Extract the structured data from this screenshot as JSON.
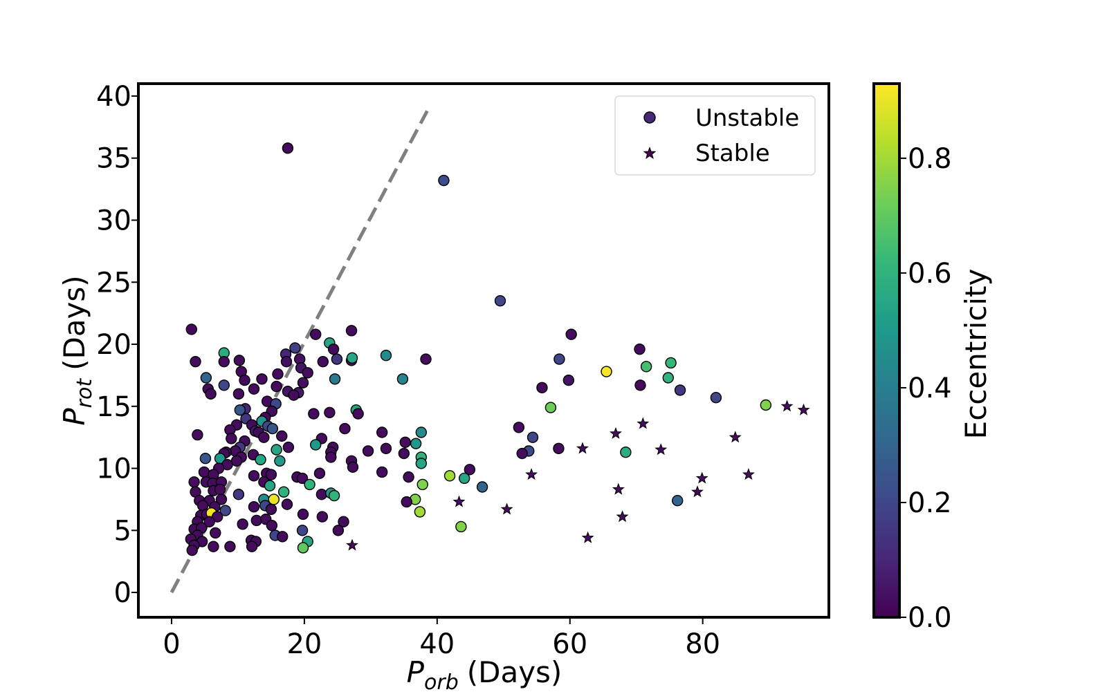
{
  "chart_data": {
    "type": "scatter",
    "xlabel_main": "P",
    "xlabel_sub": "orb",
    "xlabel_unit": "(Days)",
    "ylabel_main": "P",
    "ylabel_sub": "rot",
    "ylabel_unit": "(Days)",
    "xlim": [
      -5,
      99
    ],
    "ylim": [
      -2,
      41
    ],
    "xticks": [
      0,
      20,
      40,
      60,
      80
    ],
    "yticks": [
      0,
      5,
      10,
      15,
      20,
      25,
      30,
      35,
      40
    ],
    "grid": false,
    "legend_position": "top-right",
    "reference_line": {
      "style": "dashed",
      "color": "#808080",
      "points": [
        [
          0,
          0
        ],
        [
          38.5,
          38.8
        ]
      ]
    },
    "colorbar": {
      "label": "Eccentricity",
      "range": [
        0,
        0.93
      ],
      "ticks": [
        "0.0",
        "0.2",
        "0.4",
        "0.6",
        "0.8"
      ],
      "tick_values": [
        0.0,
        0.2,
        0.4,
        0.6,
        0.8
      ],
      "colormap": "viridis",
      "colormap_stops": [
        "#440154",
        "#482878",
        "#3e4989",
        "#31688e",
        "#26828e",
        "#1f9e89",
        "#35b779",
        "#6ece58",
        "#b5de2b",
        "#fde725"
      ]
    },
    "series": [
      {
        "name": "Unstable",
        "marker": "circle",
        "points": [
          [
            17.5,
            35.8,
            0.02
          ],
          [
            41,
            33.2,
            0.22
          ],
          [
            49.5,
            23.5,
            0.2
          ],
          [
            60.2,
            20.8,
            0.03
          ],
          [
            70.5,
            19.6,
            0.03
          ],
          [
            3,
            21.2,
            0.02
          ],
          [
            27.1,
            21.1,
            0.03
          ],
          [
            21.7,
            20.8,
            0.03
          ],
          [
            23.8,
            20.1,
            0.55
          ],
          [
            18.6,
            19.7,
            0.18
          ],
          [
            24.4,
            19.6,
            0.03
          ],
          [
            7.9,
            19.3,
            0.58
          ],
          [
            17.2,
            19.2,
            0.1
          ],
          [
            19.3,
            18.8,
            0.04
          ],
          [
            24.9,
            18.8,
            0.15
          ],
          [
            10.2,
            18.7,
            0.03
          ],
          [
            3.6,
            18.6,
            0.03
          ],
          [
            7.9,
            18.6,
            0.03
          ],
          [
            17.3,
            18.6,
            0.04
          ],
          [
            22.8,
            18.6,
            0.03
          ],
          [
            27.1,
            18.7,
            0.05
          ],
          [
            27.2,
            18.9,
            0.55
          ],
          [
            32.3,
            19.1,
            0.45
          ],
          [
            38.3,
            18.8,
            0.03
          ],
          [
            58.4,
            18.8,
            0.2
          ],
          [
            71.5,
            18.2,
            0.65
          ],
          [
            75.2,
            18.5,
            0.62
          ],
          [
            65.5,
            17.8,
            0.92
          ],
          [
            10.5,
            17.8,
            0.03
          ],
          [
            19.5,
            18.1,
            0.05
          ],
          [
            16,
            17.6,
            0.03
          ],
          [
            20.5,
            17.7,
            0.03
          ],
          [
            13.6,
            17.2,
            0.03
          ],
          [
            5.2,
            17.3,
            0.3
          ],
          [
            11,
            17.1,
            0.03
          ],
          [
            19.8,
            16.9,
            0.04
          ],
          [
            15.8,
            16.6,
            0.03
          ],
          [
            7.9,
            16.7,
            0.2
          ],
          [
            12.4,
            16.4,
            0.03
          ],
          [
            5.5,
            16.4,
            0.03
          ],
          [
            5.9,
            16,
            0.03
          ],
          [
            17.5,
            16.2,
            0.05
          ],
          [
            19.1,
            16.1,
            0.06
          ],
          [
            24.6,
            17.2,
            0.38
          ],
          [
            34.8,
            17.2,
            0.42
          ],
          [
            59.8,
            17.1,
            0.05
          ],
          [
            70.6,
            16.7,
            0.03
          ],
          [
            74.8,
            17.3,
            0.6
          ],
          [
            76.6,
            16.3,
            0.15
          ],
          [
            55.8,
            16.5,
            0.03
          ],
          [
            82,
            15.7,
            0.2
          ],
          [
            10.1,
            16,
            0.03
          ],
          [
            18.4,
            15.9,
            0.03
          ],
          [
            14.4,
            15.4,
            0.03
          ],
          [
            15.7,
            15.2,
            0.2
          ],
          [
            57.1,
            14.9,
            0.72
          ],
          [
            89.5,
            15.1,
            0.75
          ],
          [
            11.1,
            14.8,
            0.1
          ],
          [
            10.3,
            14.7,
            0.25
          ],
          [
            21.4,
            14.4,
            0.03
          ],
          [
            27.8,
            14.7,
            0.55
          ],
          [
            28.1,
            14.4,
            0.03
          ],
          [
            15.1,
            14.6,
            0.03
          ],
          [
            14.1,
            14.1,
            0.03
          ],
          [
            23.8,
            14.5,
            0.03
          ],
          [
            11.2,
            14,
            0.15
          ],
          [
            12.1,
            13.5,
            0.03
          ],
          [
            13.6,
            13.8,
            0.48
          ],
          [
            14.5,
            13.4,
            0.2
          ],
          [
            9.8,
            13.5,
            0.03
          ],
          [
            8.8,
            13.1,
            0.03
          ],
          [
            12.6,
            13,
            0.06
          ],
          [
            13.1,
            12.9,
            0.03
          ],
          [
            15.2,
            13.2,
            0.25
          ],
          [
            26.1,
            13.2,
            0.03
          ],
          [
            31.7,
            12.9,
            0.03
          ],
          [
            52.3,
            13.3,
            0.03
          ],
          [
            3.9,
            12.7,
            0.03
          ],
          [
            13.9,
            12.5,
            0.03
          ],
          [
            16.6,
            12.6,
            0.03
          ],
          [
            9,
            12.4,
            0.03
          ],
          [
            22.6,
            12.4,
            0.03
          ],
          [
            37.6,
            12.9,
            0.45
          ],
          [
            54.4,
            12.5,
            0.2
          ],
          [
            11,
            12.2,
            0.03
          ],
          [
            35.2,
            12.1,
            0.03
          ],
          [
            36.8,
            12,
            0.5
          ],
          [
            17.6,
            11.7,
            0.03
          ],
          [
            21.7,
            11.9,
            0.5
          ],
          [
            24.3,
            11.7,
            0.03
          ],
          [
            32.3,
            11.6,
            0.03
          ],
          [
            10.3,
            11.7,
            0.15
          ],
          [
            15.8,
            11.5,
            0.55
          ],
          [
            9.6,
            11.4,
            0.03
          ],
          [
            8.2,
            11.3,
            0.03
          ],
          [
            29.6,
            11.4,
            0.03
          ],
          [
            35,
            11.2,
            0.03
          ],
          [
            58.3,
            11.6,
            0.03
          ],
          [
            68.4,
            11.3,
            0.58
          ],
          [
            53.8,
            11.4,
            0.2
          ],
          [
            52.8,
            11.2,
            0.03
          ],
          [
            7.9,
            11.2,
            0.03
          ],
          [
            24,
            11.3,
            0.03
          ],
          [
            12.3,
            11.1,
            0.03
          ],
          [
            16.3,
            10.6,
            0.5
          ],
          [
            24,
            10.9,
            0.03
          ],
          [
            37.6,
            10.9,
            0.6
          ],
          [
            37.6,
            10.4,
            0.55
          ],
          [
            5.1,
            10.8,
            0.25
          ],
          [
            10.5,
            10.9,
            0.03
          ],
          [
            13.4,
            10.7,
            0.55
          ],
          [
            7.3,
            10.8,
            0.5
          ],
          [
            9.8,
            10.6,
            0.03
          ],
          [
            27.1,
            10.6,
            0.03
          ],
          [
            27.3,
            10.1,
            0.03
          ],
          [
            8.4,
            10.3,
            0.03
          ],
          [
            7.1,
            10,
            0.03
          ],
          [
            44.9,
            9.9,
            0.03
          ],
          [
            41.9,
            9.4,
            0.8
          ],
          [
            44.1,
            9.2,
            0.55
          ],
          [
            31.7,
            9.7,
            0.03
          ],
          [
            22.3,
            9.6,
            0.03
          ],
          [
            14.3,
            9.6,
            0.03
          ],
          [
            15,
            9.5,
            0.03
          ],
          [
            18.9,
            9.3,
            0.03
          ],
          [
            19.7,
            9.2,
            0.03
          ],
          [
            35.7,
            9.3,
            0.03
          ],
          [
            12.4,
            9.4,
            0.03
          ],
          [
            4.9,
            9.7,
            0.03
          ],
          [
            6.3,
            9.5,
            0.03
          ],
          [
            3.4,
            8.9,
            0.03
          ],
          [
            5.2,
            8.9,
            0.03
          ],
          [
            6.2,
            8.8,
            0.03
          ],
          [
            7.5,
            8.9,
            0.03
          ],
          [
            13.9,
            8.9,
            0.03
          ],
          [
            14.8,
            8.6,
            0.55
          ],
          [
            20.8,
            8.7,
            0.6
          ],
          [
            37.8,
            8.7,
            0.75
          ],
          [
            46.8,
            8.5,
            0.3
          ],
          [
            3.6,
            8.1,
            0.03
          ],
          [
            6.3,
            8.2,
            0.03
          ],
          [
            7.3,
            8.3,
            0.03
          ],
          [
            10.1,
            7.9,
            0.15
          ],
          [
            16.9,
            8.1,
            0.6
          ],
          [
            22.6,
            7.9,
            0.03
          ],
          [
            24,
            8,
            0.5
          ],
          [
            24.5,
            7.8,
            0.6
          ],
          [
            4.2,
            7.4,
            0.03
          ],
          [
            5.7,
            7.4,
            0.03
          ],
          [
            7.5,
            7.5,
            0.03
          ],
          [
            13.9,
            7.5,
            0.45
          ],
          [
            15.4,
            7.5,
            0.9
          ],
          [
            17.4,
            7.1,
            0.03
          ],
          [
            36.7,
            7.5,
            0.75
          ],
          [
            35.4,
            7.3,
            0.03
          ],
          [
            76.2,
            7.4,
            0.3
          ],
          [
            4.7,
            7,
            0.03
          ],
          [
            6.5,
            6.9,
            0.03
          ],
          [
            8.1,
            6.6,
            0.2
          ],
          [
            14.1,
            7,
            0.2
          ],
          [
            12.4,
            6.9,
            0.03
          ],
          [
            15,
            6.7,
            0.03
          ],
          [
            37.4,
            6.5,
            0.8
          ],
          [
            19.8,
            6.3,
            0.03
          ],
          [
            22.7,
            6.1,
            0.03
          ],
          [
            4.4,
            6.2,
            0.03
          ],
          [
            5.3,
            6.3,
            0.03
          ],
          [
            6,
            6.4,
            0.92
          ],
          [
            6.9,
            6.1,
            0.03
          ],
          [
            3.9,
            5.7,
            0.03
          ],
          [
            5.7,
            5.7,
            0.03
          ],
          [
            12.8,
            5.8,
            0.03
          ],
          [
            14.2,
            5.9,
            0.03
          ],
          [
            25.9,
            5.7,
            0.03
          ],
          [
            43.6,
            5.3,
            0.75
          ],
          [
            10.7,
            5.5,
            0.03
          ],
          [
            15.1,
            5.4,
            0.03
          ],
          [
            3.4,
            5.1,
            0.03
          ],
          [
            4.5,
            5.2,
            0.03
          ],
          [
            6.6,
            4.8,
            0.03
          ],
          [
            19.7,
            5,
            0.2
          ],
          [
            25.1,
            5,
            0.03
          ],
          [
            3.9,
            4.6,
            0.03
          ],
          [
            15.6,
            4.6,
            0.2
          ],
          [
            16.7,
            4.5,
            0.03
          ],
          [
            2.9,
            4.3,
            0.03
          ],
          [
            4.6,
            4.1,
            0.03
          ],
          [
            12,
            4.2,
            0.03
          ],
          [
            12.7,
            4.1,
            0.03
          ],
          [
            20.5,
            4.1,
            0.55
          ],
          [
            3.4,
            3.8,
            0.03
          ],
          [
            6.3,
            3.7,
            0.03
          ],
          [
            8.8,
            3.7,
            0.03
          ],
          [
            12.1,
            3.7,
            0.03
          ],
          [
            19.8,
            3.6,
            0.7
          ],
          [
            3.1,
            3.4,
            0.03
          ]
        ]
      },
      {
        "name": "Stable",
        "marker": "star",
        "points": [
          [
            92.7,
            15,
            0.03
          ],
          [
            95.2,
            14.7,
            0.03
          ],
          [
            71,
            13.6,
            0.03
          ],
          [
            66.9,
            12.8,
            0.03
          ],
          [
            84.9,
            12.5,
            0.03
          ],
          [
            61.9,
            11.6,
            0.03
          ],
          [
            73.7,
            11.5,
            0.03
          ],
          [
            54.2,
            9.5,
            0.03
          ],
          [
            86.9,
            9.5,
            0.03
          ],
          [
            79.9,
            9.2,
            0.03
          ],
          [
            67.3,
            8.3,
            0.03
          ],
          [
            79.2,
            8.1,
            0.03
          ],
          [
            43.3,
            7.3,
            0.03
          ],
          [
            50.5,
            6.7,
            0.03
          ],
          [
            67.9,
            6.1,
            0.03
          ],
          [
            62.7,
            4.4,
            0.03
          ],
          [
            27.2,
            3.8,
            0.03
          ]
        ]
      }
    ]
  }
}
